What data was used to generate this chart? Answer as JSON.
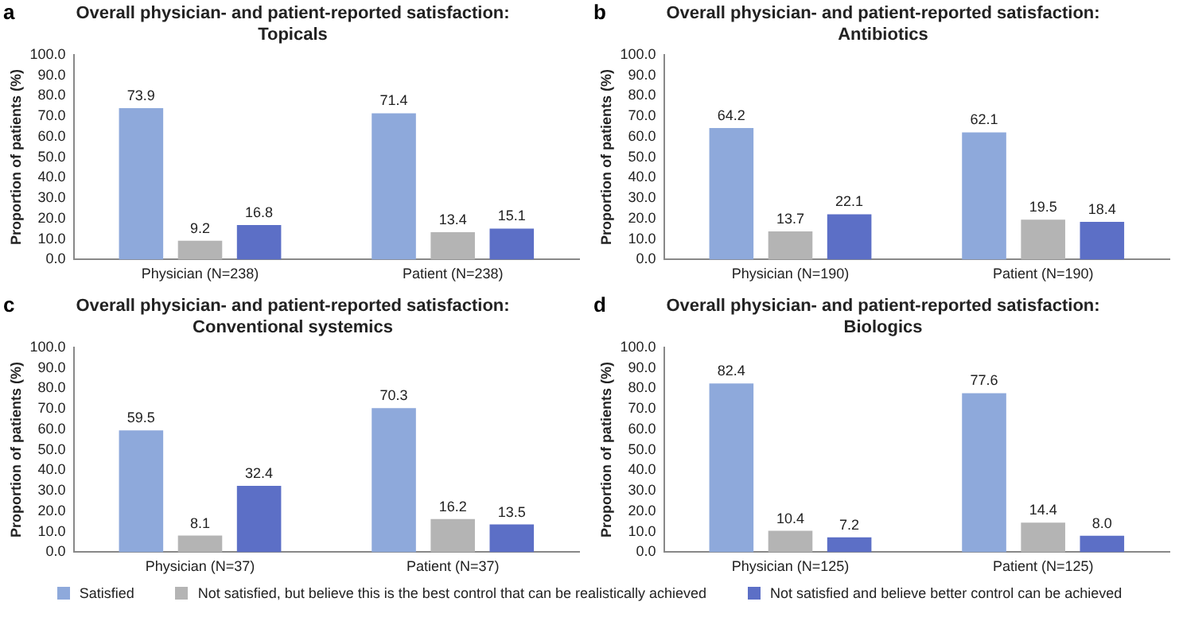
{
  "chart_data": [
    {
      "type": "bar",
      "title": "Overall physician- and patient-reported satisfaction: Topicals",
      "annotations": [
        "a"
      ],
      "ylabel": "Proportion of patients (%)",
      "categories": [
        "Physician (N=238)",
        "Patient (N=238)"
      ],
      "series": [
        {
          "color": "#8ea9db",
          "values": [
            73.9,
            71.4
          ]
        },
        {
          "color": "#b4b4b4",
          "values": [
            9.2,
            13.4
          ]
        },
        {
          "color": "#5c6fc6",
          "values": [
            16.8,
            15.1
          ]
        }
      ],
      "ylim": [
        0,
        100
      ],
      "yticks": [
        {
          "value": 0,
          "label": "0.0"
        },
        {
          "value": 10,
          "label": "10.0"
        },
        {
          "value": 20,
          "label": "20.0"
        },
        {
          "value": 30,
          "label": "30.0"
        },
        {
          "value": 40,
          "label": "40.0"
        },
        {
          "value": 50,
          "label": "50.0"
        },
        {
          "value": 60,
          "label": "60.0"
        },
        {
          "value": 70,
          "label": "70.0"
        },
        {
          "value": 80,
          "label": "80.0"
        },
        {
          "value": 90,
          "label": "90.0"
        },
        {
          "value": 100,
          "label": "100.0"
        }
      ],
      "data_labels": true,
      "grid": false
    },
    {
      "type": "bar",
      "title": "Overall physician- and patient-reported satisfaction: Antibiotics",
      "annotations": [
        "b"
      ],
      "ylabel": "Proportion of patients (%)",
      "categories": [
        "Physician (N=190)",
        "Patient (N=190)"
      ],
      "series": [
        {
          "color": "#8ea9db",
          "values": [
            64.2,
            62.1
          ]
        },
        {
          "color": "#b4b4b4",
          "values": [
            13.7,
            19.5
          ]
        },
        {
          "color": "#5c6fc6",
          "values": [
            22.1,
            18.4
          ]
        }
      ],
      "ylim": [
        0,
        100
      ],
      "yticks": [
        {
          "value": 0,
          "label": "0.0"
        },
        {
          "value": 10,
          "label": "10.0"
        },
        {
          "value": 20,
          "label": "20.0"
        },
        {
          "value": 30,
          "label": "30.0"
        },
        {
          "value": 40,
          "label": "40.0"
        },
        {
          "value": 50,
          "label": "50.0"
        },
        {
          "value": 60,
          "label": "60.0"
        },
        {
          "value": 70,
          "label": "70.0"
        },
        {
          "value": 80,
          "label": "80.0"
        },
        {
          "value": 90,
          "label": "90.0"
        },
        {
          "value": 100,
          "label": "100.0"
        }
      ],
      "data_labels": true,
      "grid": false
    },
    {
      "type": "bar",
      "title": "Overall physician- and patient-reported satisfaction: Conventional systemics",
      "annotations": [
        "c"
      ],
      "ylabel": "Proportion of patients (%)",
      "categories": [
        "Physician (N=37)",
        "Patient (N=37)"
      ],
      "series": [
        {
          "color": "#8ea9db",
          "values": [
            59.5,
            70.3
          ]
        },
        {
          "color": "#b4b4b4",
          "values": [
            8.1,
            16.2
          ]
        },
        {
          "color": "#5c6fc6",
          "values": [
            32.4,
            13.5
          ]
        }
      ],
      "ylim": [
        0,
        100
      ],
      "yticks": [
        {
          "value": 0,
          "label": "0.0"
        },
        {
          "value": 10,
          "label": "10.0"
        },
        {
          "value": 20,
          "label": "20.0"
        },
        {
          "value": 30,
          "label": "30.0"
        },
        {
          "value": 40,
          "label": "40.0"
        },
        {
          "value": 50,
          "label": "50.0"
        },
        {
          "value": 60,
          "label": "60.0"
        },
        {
          "value": 70,
          "label": "70.0"
        },
        {
          "value": 80,
          "label": "80.0"
        },
        {
          "value": 90,
          "label": "90.0"
        },
        {
          "value": 100,
          "label": "100.0"
        }
      ],
      "data_labels": true,
      "grid": false
    },
    {
      "type": "bar",
      "title": "Overall physician- and patient-reported satisfaction: Biologics",
      "annotations": [
        "d"
      ],
      "ylabel": "Proportion of patients (%)",
      "categories": [
        "Physician (N=125)",
        "Patient (N=125)"
      ],
      "series": [
        {
          "name": "Satisfied",
          "color": "#8ea9db",
          "values": [
            82.4,
            77.6
          ],
          "value_labels": [
            "82.4",
            "77.6"
          ]
        },
        {
          "name": "Not satisfied, but believe this is the best control that can be realistically achieved",
          "color": "#b4b4b4",
          "values": [
            10.4,
            14.4
          ],
          "value_labels": [
            "10.4",
            "14.4"
          ]
        },
        {
          "name": "Not satisfied and believe better control can be achieved",
          "color": "#5c6fc6",
          "values": [
            7.2,
            8.0
          ],
          "value_labels": [
            "7.2",
            "8.0"
          ]
        }
      ],
      "ylim": [
        0,
        100
      ],
      "yticks": [
        {
          "value": 0,
          "label": "0.0"
        },
        {
          "value": 10,
          "label": "10.0"
        },
        {
          "value": 20,
          "label": "20.0"
        },
        {
          "value": 30,
          "label": "30.0"
        },
        {
          "value": 40,
          "label": "40.0"
        },
        {
          "value": 50,
          "label": "50.0"
        },
        {
          "value": 60,
          "label": "60.0"
        },
        {
          "value": 70,
          "label": "70.0"
        },
        {
          "value": 80,
          "label": "80.0"
        },
        {
          "value": 90,
          "label": "90.0"
        },
        {
          "value": 100,
          "label": "100.0"
        }
      ],
      "grid": false,
      "legend": "bottom"
    }
  ]
}
